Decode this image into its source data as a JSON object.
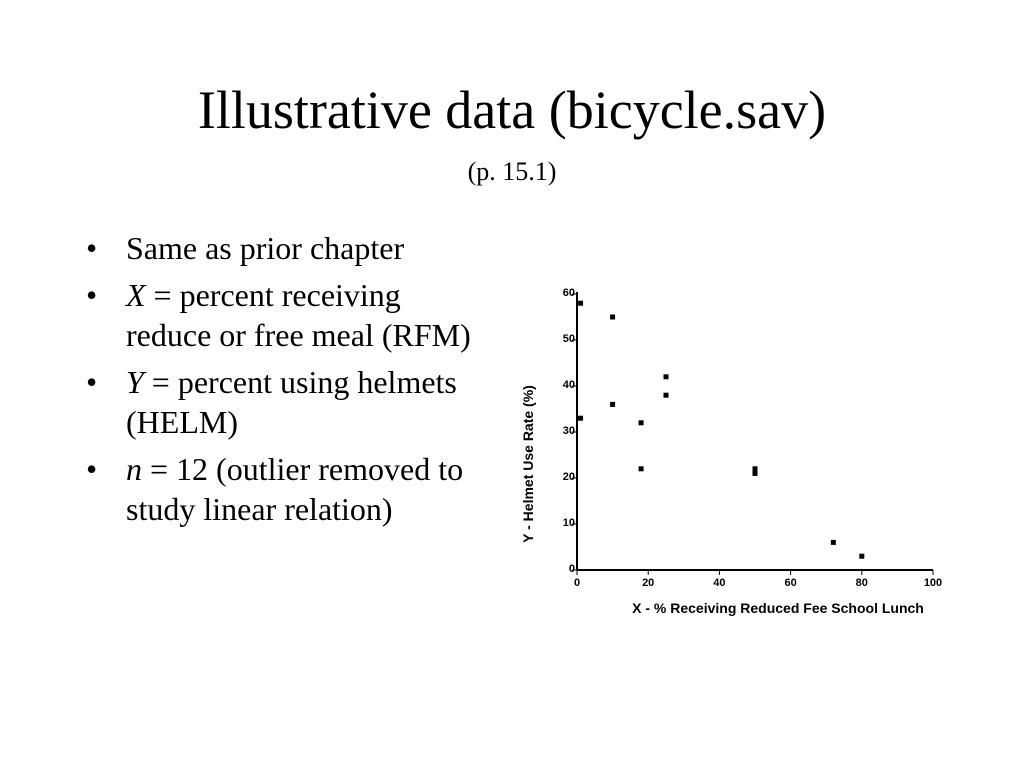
{
  "slide": {
    "title": "Illustrative data (bicycle.sav)",
    "subtitle": "(p. 15.1)",
    "bullet_glyph": "•",
    "bullets": [
      {
        "lead": "",
        "text": "Same as prior chapter"
      },
      {
        "lead": "X",
        "text": " = percent receiving reduce or free meal (RFM)"
      },
      {
        "lead": "Y",
        "text": " = percent using helmets (HELM)"
      },
      {
        "lead": "n",
        "text": " = 12 (outlier removed to study linear relation)"
      }
    ]
  },
  "chart_data": {
    "type": "scatter",
    "title": "",
    "xlabel": "X - % Receiving Reduced Fee School Lunch",
    "ylabel": "Y - Helmet Use Rate (%)",
    "xlim": [
      0,
      100
    ],
    "ylim": [
      0,
      60
    ],
    "x_ticks": [
      0,
      20,
      40,
      60,
      80,
      100
    ],
    "y_ticks": [
      0,
      10,
      20,
      30,
      40,
      50,
      60
    ],
    "grid": false,
    "marker_color": "#000000",
    "points": [
      {
        "x": 1,
        "y": 58
      },
      {
        "x": 1,
        "y": 33
      },
      {
        "x": 10,
        "y": 55
      },
      {
        "x": 10,
        "y": 36
      },
      {
        "x": 18,
        "y": 32
      },
      {
        "x": 18,
        "y": 22
      },
      {
        "x": 25,
        "y": 42
      },
      {
        "x": 25,
        "y": 38
      },
      {
        "x": 50,
        "y": 22
      },
      {
        "x": 50,
        "y": 21
      },
      {
        "x": 72,
        "y": 6
      },
      {
        "x": 80,
        "y": 3
      }
    ]
  }
}
